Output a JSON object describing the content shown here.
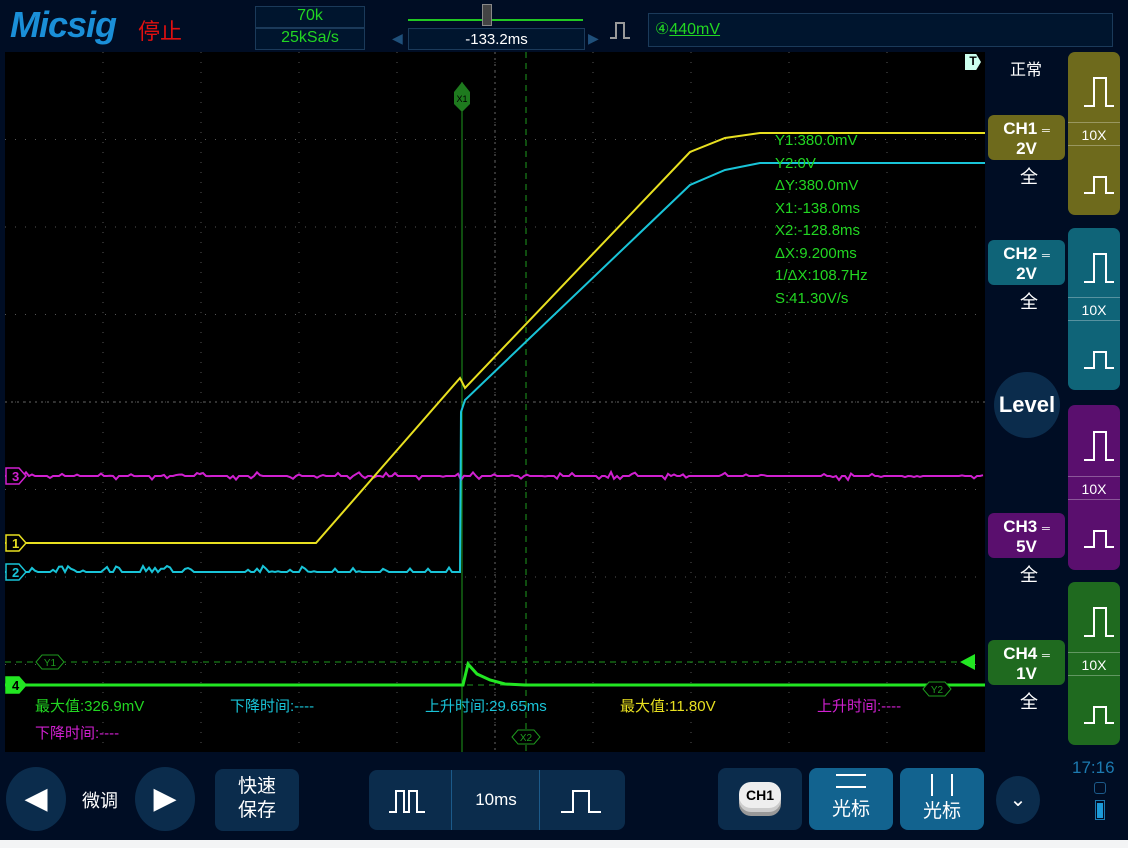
{
  "header": {
    "brand": "Micsig",
    "run_state": "停止",
    "memory_depth": "70k",
    "sample_rate": "25kSa/s",
    "trigger_position": "-133.2ms",
    "trigger_source": "④",
    "trigger_level": "440mV",
    "trigger_edge_icon": "rising-edge-icon"
  },
  "screen": {
    "x1_label": "X1",
    "y1_label": "Y1",
    "y2_label": "Y2",
    "x2_label": "X2",
    "trigger_marker": "T",
    "ch_markers": [
      "1",
      "2",
      "3",
      "4"
    ],
    "cursor_readout": [
      "Y1:380.0mV",
      "Y2:0V",
      "ΔY:380.0mV",
      "X1:-138.0ms",
      "X2:-128.8ms",
      "ΔX:9.200ms",
      "1/ΔX:108.7Hz",
      "S:41.30V/s"
    ],
    "measurements": [
      {
        "text": "最大值:326.9mV",
        "color": "#22d622"
      },
      {
        "text": "下降时间:----",
        "color": "#19c4d8"
      },
      {
        "text": "上升时间:29.65ms",
        "color": "#19c4d8"
      },
      {
        "text": "最大值:11.80V",
        "color": "#e8e020"
      },
      {
        "text": "上升时间:----",
        "color": "#d020d0"
      },
      {
        "text": "下降时间:----",
        "color": "#d020d0"
      }
    ]
  },
  "right_panel": {
    "trigger_mode": "正常",
    "level_label": "Level",
    "channels": [
      {
        "name": "CH1",
        "scale": "2V",
        "bw": "全",
        "probe": "10X",
        "color": "#6e6a1c"
      },
      {
        "name": "CH2",
        "scale": "2V",
        "bw": "全",
        "probe": "10X",
        "color": "#0f6478"
      },
      {
        "name": "CH3",
        "scale": "5V",
        "bw": "全",
        "probe": "10X",
        "color": "#5a0f6e"
      },
      {
        "name": "CH4",
        "scale": "1V",
        "bw": "全",
        "probe": "10X",
        "color": "#1f6a1f"
      }
    ]
  },
  "colors": {
    "ch1": "#e8e020",
    "ch2": "#19c4d8",
    "ch3": "#d020d0",
    "ch4": "#22e622"
  },
  "bottom_bar": {
    "fine_label": "微调",
    "quick_save": "快速\n保存",
    "timebase": "10ms",
    "ch_select": "CH1",
    "cursor_h": "光标",
    "cursor_v": "光标",
    "time": "17:16"
  }
}
